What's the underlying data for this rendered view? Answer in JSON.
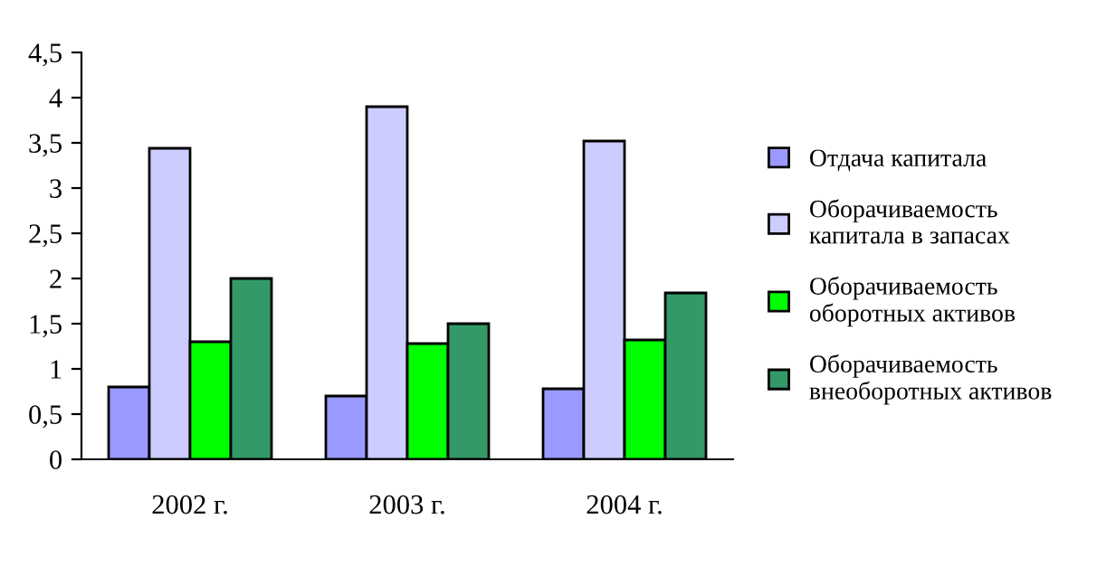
{
  "chart_data": {
    "type": "bar",
    "categories": [
      "2002 г.",
      "2003 г.",
      "2004 г."
    ],
    "series": [
      {
        "name": "Отдача капитала",
        "color": "#9999ff",
        "values": [
          0.8,
          0.7,
          0.78
        ]
      },
      {
        "name": "Оборачиваемость капитала в запасах",
        "color": "#ccccff",
        "values": [
          3.44,
          3.9,
          3.52
        ]
      },
      {
        "name": "Оборачиваемость оборотных активов",
        "color": "#00ff00",
        "values": [
          1.3,
          1.28,
          1.32
        ]
      },
      {
        "name": "Оборачиваемость внеоборотных активов",
        "color": "#339966",
        "values": [
          2.0,
          1.5,
          1.84
        ]
      }
    ],
    "ylim": [
      0,
      4.5
    ],
    "yticks": [
      0,
      {
        "value": 0.5,
        "label": "0,5"
      },
      1,
      {
        "value": 1.5,
        "label": "1,5"
      },
      2,
      {
        "value": 2.5,
        "label": "2,5"
      },
      3,
      {
        "value": 3.5,
        "label": "3,5"
      },
      4,
      {
        "value": 4.5,
        "label": "4,5"
      }
    ],
    "grid": false,
    "legend": "right"
  }
}
